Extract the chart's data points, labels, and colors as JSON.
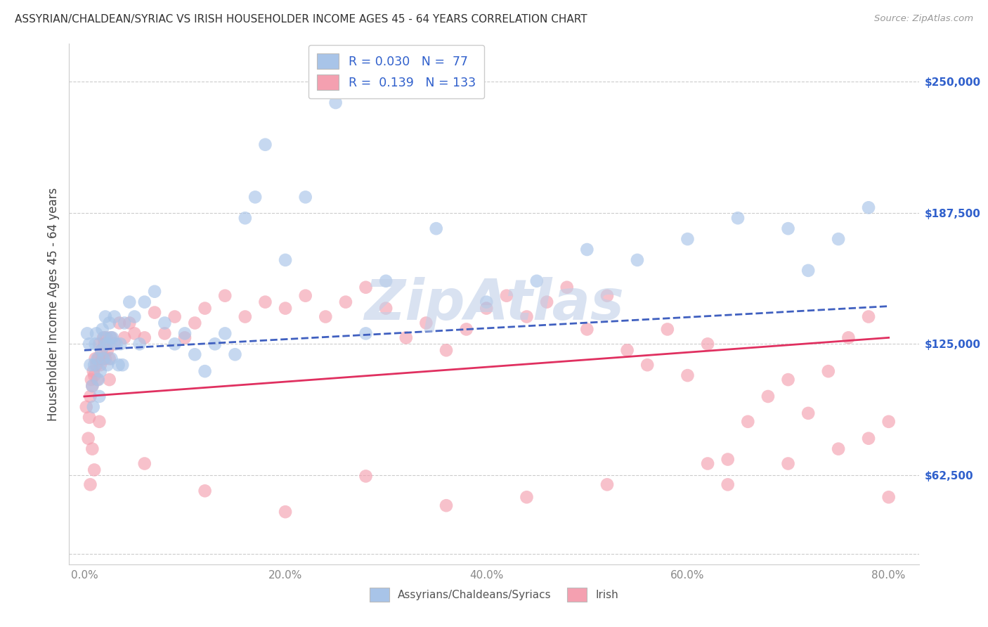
{
  "title": "ASSYRIAN/CHALDEAN/SYRIAC VS IRISH HOUSEHOLDER INCOME AGES 45 - 64 YEARS CORRELATION CHART",
  "source": "Source: ZipAtlas.com",
  "ylabel": "Householder Income Ages 45 - 64 years",
  "xlabel_ticks": [
    "0.0%",
    "20.0%",
    "40.0%",
    "60.0%",
    "80.0%"
  ],
  "xlabel_vals": [
    0.0,
    20.0,
    40.0,
    60.0,
    80.0
  ],
  "ytick_labels": [
    "$62,500",
    "$125,000",
    "$187,500",
    "$250,000"
  ],
  "ytick_vals": [
    62500,
    125000,
    187500,
    250000
  ],
  "ylim": [
    20000,
    268000
  ],
  "xlim": [
    -1.5,
    83.0
  ],
  "legend_blue_r": "0.030",
  "legend_blue_n": "77",
  "legend_pink_r": "0.139",
  "legend_pink_n": "133",
  "blue_color": "#A8C4E8",
  "pink_color": "#F4A0B0",
  "blue_line_color": "#4060C0",
  "pink_line_color": "#E03060",
  "right_label_color": "#3060CC",
  "grid_color": "#CCCCCC",
  "watermark_color": "#C0D0E8",
  "blue_scatter_x": [
    0.3,
    0.5,
    0.6,
    0.8,
    0.9,
    1.0,
    1.1,
    1.2,
    1.3,
    1.4,
    1.5,
    1.6,
    1.7,
    1.8,
    1.9,
    2.0,
    2.1,
    2.2,
    2.3,
    2.4,
    2.5,
    2.6,
    2.7,
    2.8,
    3.0,
    3.2,
    3.4,
    3.6,
    3.8,
    4.0,
    4.5,
    5.0,
    5.5,
    6.0,
    7.0,
    8.0,
    9.0,
    10.0,
    11.0,
    12.0,
    13.0,
    14.0,
    15.0,
    16.0,
    17.0,
    18.0,
    20.0,
    22.0,
    25.0,
    28.0,
    30.0,
    35.0,
    40.0,
    45.0,
    50.0,
    55.0,
    60.0,
    65.0,
    70.0,
    72.0,
    75.0,
    78.0
  ],
  "blue_scatter_y": [
    130000,
    125000,
    115000,
    105000,
    95000,
    115000,
    125000,
    130000,
    118000,
    108000,
    100000,
    112000,
    122000,
    132000,
    118000,
    128000,
    138000,
    125000,
    115000,
    125000,
    135000,
    128000,
    118000,
    128000,
    138000,
    125000,
    115000,
    125000,
    115000,
    135000,
    145000,
    138000,
    125000,
    145000,
    150000,
    135000,
    125000,
    130000,
    120000,
    112000,
    125000,
    130000,
    120000,
    185000,
    195000,
    220000,
    165000,
    195000,
    240000,
    130000,
    155000,
    180000,
    145000,
    155000,
    170000,
    165000,
    175000,
    185000,
    180000,
    160000,
    175000,
    190000
  ],
  "pink_scatter_x": [
    0.2,
    0.4,
    0.5,
    0.6,
    0.7,
    0.8,
    0.9,
    1.0,
    1.1,
    1.2,
    1.3,
    1.4,
    1.5,
    1.6,
    1.7,
    1.8,
    1.9,
    2.0,
    2.1,
    2.2,
    2.3,
    2.5,
    2.7,
    3.0,
    3.5,
    4.0,
    4.5,
    5.0,
    6.0,
    7.0,
    8.0,
    9.0,
    10.0,
    11.0,
    12.0,
    14.0,
    16.0,
    18.0,
    20.0,
    22.0,
    24.0,
    26.0,
    28.0,
    30.0,
    32.0,
    34.0,
    36.0,
    38.0,
    40.0,
    42.0,
    44.0,
    46.0,
    48.0,
    50.0,
    52.0,
    54.0,
    56.0,
    58.0,
    60.0,
    62.0,
    64.0,
    66.0,
    68.0,
    70.0,
    72.0,
    74.0,
    76.0,
    78.0,
    80.0,
    62.0,
    64.0,
    70.0,
    75.0,
    78.0,
    80.0,
    52.0,
    44.0,
    36.0,
    28.0,
    20.0,
    12.0,
    6.0,
    2.5,
    1.5,
    1.0,
    0.8,
    0.6
  ],
  "pink_scatter_y": [
    95000,
    80000,
    90000,
    100000,
    108000,
    105000,
    112000,
    110000,
    118000,
    115000,
    108000,
    118000,
    125000,
    115000,
    122000,
    118000,
    128000,
    125000,
    118000,
    128000,
    122000,
    118000,
    128000,
    125000,
    135000,
    128000,
    135000,
    130000,
    128000,
    140000,
    130000,
    138000,
    128000,
    135000,
    142000,
    148000,
    138000,
    145000,
    142000,
    148000,
    138000,
    145000,
    152000,
    142000,
    128000,
    135000,
    122000,
    132000,
    142000,
    148000,
    138000,
    145000,
    152000,
    132000,
    148000,
    122000,
    115000,
    132000,
    110000,
    125000,
    70000,
    88000,
    100000,
    108000,
    92000,
    112000,
    128000,
    138000,
    88000,
    68000,
    58000,
    68000,
    75000,
    80000,
    52000,
    58000,
    52000,
    48000,
    62000,
    45000,
    55000,
    68000,
    108000,
    88000,
    65000,
    75000,
    58000
  ],
  "blue_trend_x0": 0.0,
  "blue_trend_x1": 80.0,
  "blue_trend_y0": 122000,
  "blue_trend_y1": 143000,
  "pink_trend_x0": 0.0,
  "pink_trend_x1": 80.0,
  "pink_trend_y0": 100000,
  "pink_trend_y1": 128000
}
